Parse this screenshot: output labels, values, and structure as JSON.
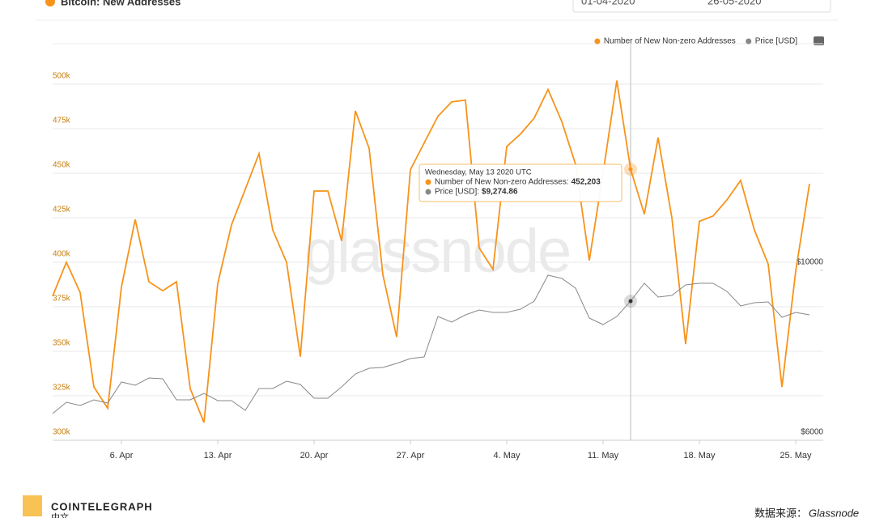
{
  "chart_data": {
    "type": "line",
    "title": "Bitcoin: New Addresses",
    "date_from": "01-04-2020",
    "date_to": "26-05-2020",
    "watermark": "glassnode",
    "x": [
      "2020-04-01",
      "2020-04-02",
      "2020-04-03",
      "2020-04-04",
      "2020-04-05",
      "2020-04-06",
      "2020-04-07",
      "2020-04-08",
      "2020-04-09",
      "2020-04-10",
      "2020-04-11",
      "2020-04-12",
      "2020-04-13",
      "2020-04-14",
      "2020-04-15",
      "2020-04-16",
      "2020-04-17",
      "2020-04-18",
      "2020-04-19",
      "2020-04-20",
      "2020-04-21",
      "2020-04-22",
      "2020-04-23",
      "2020-04-24",
      "2020-04-25",
      "2020-04-26",
      "2020-04-27",
      "2020-04-28",
      "2020-04-29",
      "2020-04-30",
      "2020-05-01",
      "2020-05-02",
      "2020-05-03",
      "2020-05-04",
      "2020-05-05",
      "2020-05-06",
      "2020-05-07",
      "2020-05-08",
      "2020-05-09",
      "2020-05-10",
      "2020-05-11",
      "2020-05-12",
      "2020-05-13",
      "2020-05-14",
      "2020-05-15",
      "2020-05-16",
      "2020-05-17",
      "2020-05-18",
      "2020-05-19",
      "2020-05-20",
      "2020-05-21",
      "2020-05-22",
      "2020-05-23",
      "2020-05-24",
      "2020-05-25",
      "2020-05-26"
    ],
    "series": [
      {
        "name": "Number of New Non-zero Addresses",
        "color": "#f7931a",
        "values": [
          381000,
          400000,
          383000,
          330000,
          318000,
          386000,
          424000,
          389000,
          384000,
          389000,
          329000,
          310000,
          388000,
          421000,
          441000,
          461000,
          418000,
          400000,
          347000,
          440000,
          440000,
          412000,
          485000,
          464000,
          393000,
          358000,
          452000,
          467000,
          482000,
          490000,
          491000,
          408000,
          396000,
          465000,
          472000,
          481000,
          497000,
          479000,
          455000,
          401000,
          450000,
          502000,
          452203,
          427000,
          470000,
          425000,
          354000,
          423000,
          426000,
          435000,
          446000,
          418000,
          399000,
          330000,
          395000,
          444000
        ]
      },
      {
        "name": "Price [USD]",
        "color": "#888888",
        "axis": "y2",
        "values": [
          6629,
          6895,
          6819,
          6952,
          6876,
          7371,
          7295,
          7467,
          7448,
          6952,
          6952,
          7105,
          6933,
          6933,
          6705,
          7219,
          7219,
          7390,
          7314,
          6990,
          6990,
          7257,
          7562,
          7695,
          7714,
          7810,
          7924,
          7962,
          8914,
          8781,
          8952,
          9067,
          9010,
          9010,
          9086,
          9276,
          9886,
          9810,
          9581,
          8876,
          8724,
          8914,
          9274.86,
          9695,
          9371,
          9410,
          9657,
          9695,
          9695,
          9505,
          9162,
          9238,
          9257,
          8895,
          9010,
          8952
        ]
      }
    ],
    "xticks": [
      {
        "value": "2020-04-06",
        "label": "6. Apr"
      },
      {
        "value": "2020-04-13",
        "label": "13. Apr"
      },
      {
        "value": "2020-04-20",
        "label": "20. Apr"
      },
      {
        "value": "2020-04-27",
        "label": "27. Apr"
      },
      {
        "value": "2020-05-04",
        "label": "4. May"
      },
      {
        "value": "2020-05-11",
        "label": "11. May"
      },
      {
        "value": "2020-05-18",
        "label": "18. May"
      },
      {
        "value": "2020-05-25",
        "label": "25. May"
      }
    ],
    "ylim": [
      300000,
      522700
    ],
    "yticks": [
      {
        "value": 300000,
        "label": "300k"
      },
      {
        "value": 325000,
        "label": "325k"
      },
      {
        "value": 350000,
        "label": "350k"
      },
      {
        "value": 375000,
        "label": "375k"
      },
      {
        "value": 400000,
        "label": "400k"
      },
      {
        "value": 425000,
        "label": "425k"
      },
      {
        "value": 450000,
        "label": "450k"
      },
      {
        "value": 475000,
        "label": "475k"
      },
      {
        "value": 500000,
        "label": "500k"
      }
    ],
    "y2lim": [
      6000,
      15333
    ],
    "y2ticks": [
      {
        "value": 6000,
        "label": "$6000"
      },
      {
        "value": 10000,
        "label": "$10000"
      }
    ],
    "grid": true,
    "legend": "top-right",
    "tooltip": {
      "x": "2020-05-13",
      "title": "Wednesday, May 13 2020 UTC",
      "items": [
        {
          "label": "Number of New Non-zero Addresses:",
          "value_label": "452,203"
        },
        {
          "label": "Price [USD]:",
          "value_label": "$9,274.86"
        }
      ]
    },
    "footer": {
      "brand": "COINTELEGRAPH",
      "brand_sub": "中文",
      "source_label": "数据来源：",
      "source": "Glassnode"
    }
  }
}
